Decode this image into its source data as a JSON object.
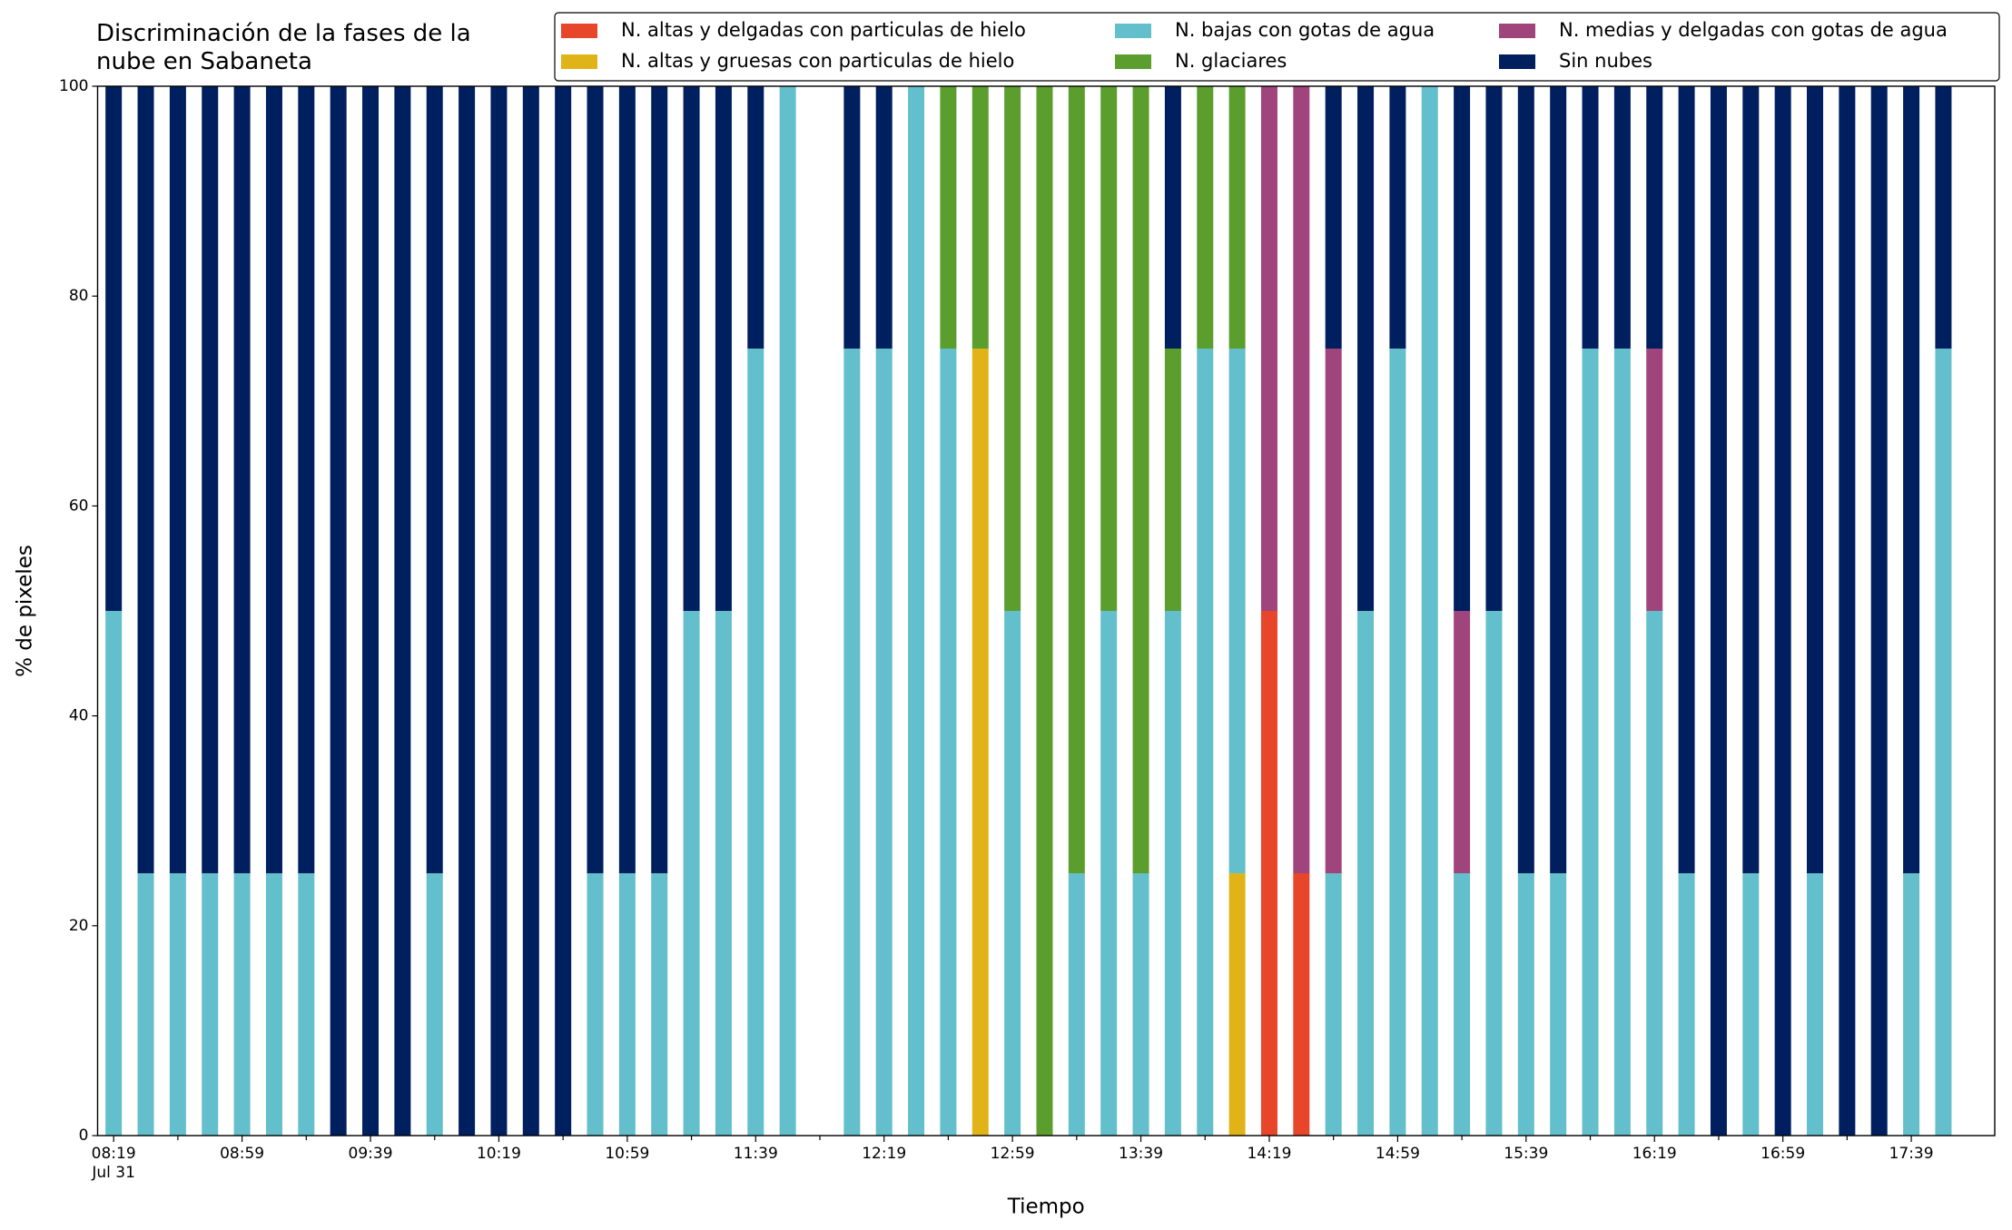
{
  "chart_data": {
    "type": "stacked_bar",
    "title": "Discriminación de la fases de la\nnube en Sabaneta",
    "xlabel": "Tiempo",
    "ylabel": "% de pixeles",
    "categories": [
      "08:19\nJul 31",
      null,
      null,
      null,
      "08:59",
      null,
      null,
      null,
      "09:39",
      null,
      null,
      null,
      "10:19",
      null,
      null,
      null,
      "10:59",
      null,
      null,
      null,
      "11:39",
      null,
      null,
      null,
      "12:19",
      null,
      null,
      null,
      "12:59",
      null,
      null,
      null,
      "13:39",
      null,
      null,
      null,
      "14:19",
      null,
      null,
      null,
      "14:59",
      null,
      null,
      null,
      "15:39",
      null,
      null,
      null,
      "16:19",
      null,
      null,
      null,
      "16:59",
      null,
      null,
      null,
      "17:39",
      null
    ],
    "series": [
      {
        "name": "N. altas y delgadas con particulas de hielo",
        "color": "#e8462a",
        "values": [
          0,
          0,
          0,
          0,
          0,
          0,
          0,
          0,
          0,
          0,
          0,
          0,
          0,
          0,
          0,
          0,
          0,
          0,
          0,
          0,
          0,
          0,
          0,
          0,
          0,
          0,
          0,
          0,
          0,
          0,
          0,
          0,
          0,
          0,
          0,
          0,
          50,
          25,
          0,
          0,
          0,
          0,
          0,
          0,
          0,
          0,
          0,
          0,
          0,
          0,
          0,
          0,
          0,
          0,
          0,
          0,
          0,
          0
        ]
      },
      {
        "name": "N. altas y gruesas con particulas de hielo",
        "color": "#e0b418",
        "values": [
          0,
          0,
          0,
          0,
          0,
          0,
          0,
          0,
          0,
          0,
          0,
          0,
          0,
          0,
          0,
          0,
          0,
          0,
          0,
          0,
          0,
          0,
          0,
          0,
          0,
          0,
          0,
          75,
          0,
          0,
          0,
          0,
          0,
          0,
          0,
          25,
          0,
          0,
          0,
          0,
          0,
          0,
          0,
          0,
          0,
          0,
          0,
          0,
          0,
          0,
          0,
          0,
          0,
          0,
          0,
          0,
          0,
          0
        ]
      },
      {
        "name": "N. bajas con gotas de agua",
        "color": "#63bfcb",
        "values": [
          50,
          25,
          25,
          25,
          25,
          25,
          25,
          0,
          0,
          0,
          25,
          0,
          0,
          0,
          0,
          25,
          25,
          25,
          50,
          50,
          75,
          100,
          0,
          75,
          75,
          100,
          75,
          0,
          50,
          0,
          25,
          50,
          25,
          50,
          75,
          50,
          0,
          0,
          25,
          50,
          75,
          100,
          25,
          50,
          25,
          25,
          75,
          75,
          50,
          25,
          0,
          25,
          0,
          25,
          0,
          0,
          25,
          75
        ]
      },
      {
        "name": "N. glaciares",
        "color": "#5c9e2e",
        "values": [
          0,
          0,
          0,
          0,
          0,
          0,
          0,
          0,
          0,
          0,
          0,
          0,
          0,
          0,
          0,
          0,
          0,
          0,
          0,
          0,
          0,
          0,
          0,
          0,
          0,
          0,
          25,
          25,
          50,
          100,
          75,
          50,
          75,
          25,
          25,
          25,
          0,
          0,
          0,
          0,
          0,
          0,
          0,
          0,
          0,
          0,
          0,
          0,
          0,
          0,
          0,
          0,
          0,
          0,
          0,
          0,
          0,
          0
        ]
      },
      {
        "name": "N. medias y delgadas con gotas de agua",
        "color": "#a0457b",
        "values": [
          0,
          0,
          0,
          0,
          0,
          0,
          0,
          0,
          0,
          0,
          0,
          0,
          0,
          0,
          0,
          0,
          0,
          0,
          0,
          0,
          0,
          0,
          0,
          0,
          0,
          0,
          0,
          0,
          0,
          0,
          0,
          0,
          0,
          0,
          0,
          0,
          50,
          75,
          50,
          0,
          0,
          0,
          25,
          0,
          0,
          0,
          0,
          0,
          25,
          0,
          0,
          0,
          0,
          0,
          0,
          0,
          0,
          0
        ]
      },
      {
        "name": "Sin nubes",
        "color": "#001f5f",
        "values": [
          50,
          75,
          75,
          75,
          75,
          75,
          75,
          100,
          100,
          100,
          75,
          100,
          100,
          100,
          100,
          75,
          75,
          75,
          50,
          50,
          25,
          0,
          0,
          25,
          25,
          0,
          0,
          0,
          0,
          0,
          0,
          0,
          0,
          25,
          0,
          0,
          0,
          0,
          25,
          50,
          25,
          0,
          50,
          50,
          75,
          75,
          25,
          25,
          25,
          75,
          100,
          75,
          100,
          75,
          100,
          100,
          75,
          25
        ]
      }
    ],
    "ylim": [
      0,
      100
    ],
    "yticks": [
      0,
      20,
      40,
      60,
      80,
      100
    ],
    "legend": "upper right"
  }
}
